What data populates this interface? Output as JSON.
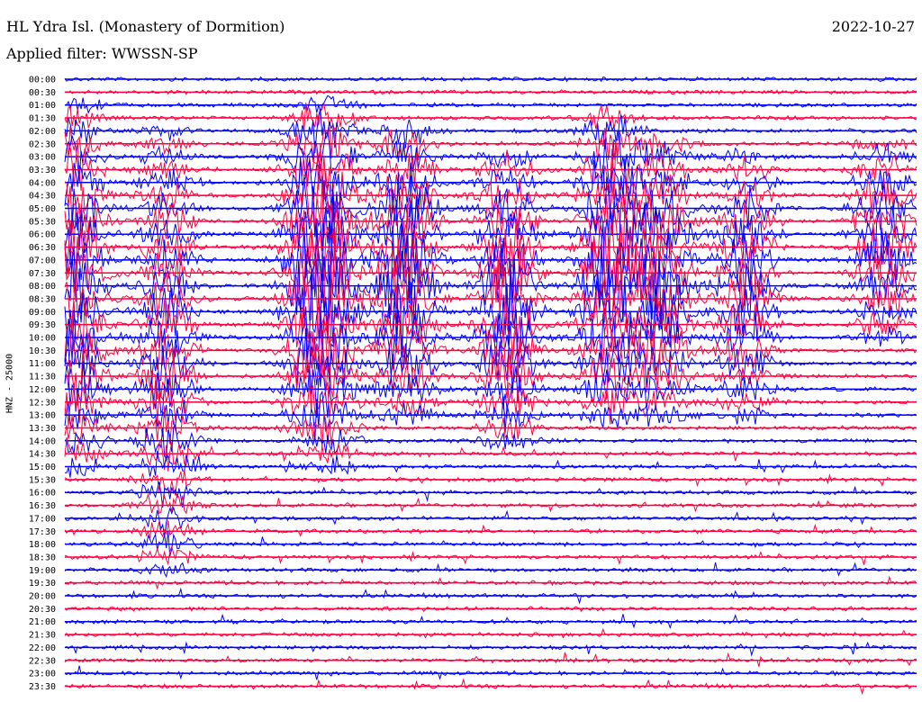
{
  "header": {
    "title": "HL Ydra Isl. (Monastery of Dormition)",
    "filter": "Applied filter: WWSSN-SP",
    "date": "2022-10-27"
  },
  "y_axis_label": "HNZ - 25000",
  "chart_data": {
    "type": "line",
    "title": "HL Ydra Isl. (Monastery of Dormition)",
    "subtitle": "Applied filter: WWSSN-SP",
    "date": "2022-10-27",
    "ylabel": "HNZ - 25000",
    "categories": [
      "00:00",
      "00:30",
      "01:00",
      "01:30",
      "02:00",
      "02:30",
      "03:00",
      "03:30",
      "04:00",
      "04:30",
      "05:00",
      "05:30",
      "06:00",
      "06:30",
      "07:00",
      "07:30",
      "08:00",
      "08:30",
      "09:00",
      "09:30",
      "10:00",
      "10:30",
      "11:00",
      "11:30",
      "12:00",
      "12:30",
      "13:00",
      "13:30",
      "14:00",
      "14:30",
      "15:00",
      "15:30",
      "16:00",
      "16:30",
      "17:00",
      "17:30",
      "18:00",
      "18:30",
      "19:00",
      "19:30",
      "20:00",
      "20:30",
      "21:00",
      "21:30",
      "22:00",
      "22:30",
      "23:00",
      "23:30"
    ],
    "colors": [
      "#0000ff",
      "#ff0040"
    ],
    "grid": false
  }
}
